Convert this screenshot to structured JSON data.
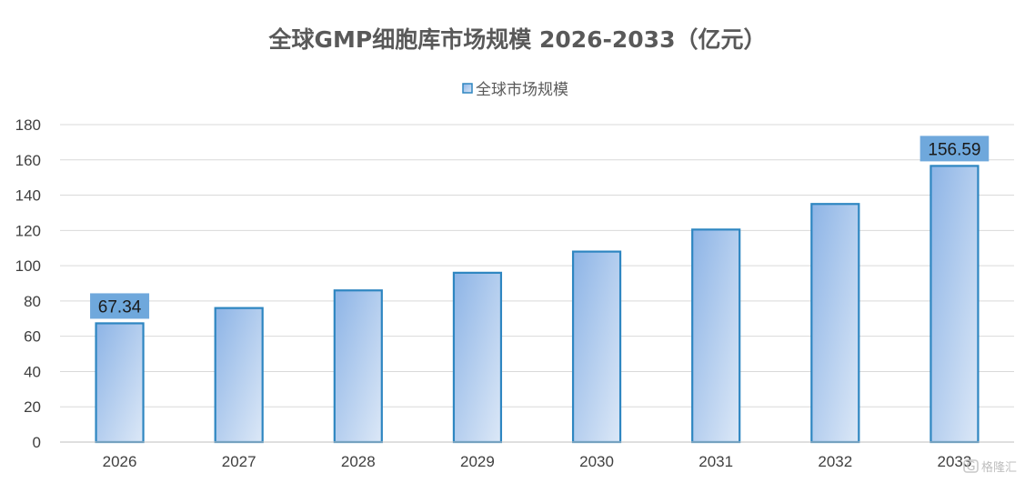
{
  "chart_data": {
    "type": "bar",
    "title": "全球GMP细胞库市场规模 2026-2033（亿元）",
    "categories": [
      "2026",
      "2027",
      "2028",
      "2029",
      "2030",
      "2031",
      "2032",
      "2033"
    ],
    "series": [
      {
        "name": "全球市场规模",
        "values": [
          67.34,
          76,
          86,
          96,
          108,
          120.5,
          135,
          156.59
        ]
      }
    ],
    "data_labels": [
      {
        "index": 0,
        "text": "67.34"
      },
      {
        "index": 7,
        "text": "156.59"
      }
    ],
    "yticks": [
      0,
      20,
      40,
      60,
      80,
      100,
      120,
      140,
      160,
      180
    ],
    "ylim": [
      0,
      180
    ],
    "xlabel": "",
    "ylabel": "",
    "grid": true,
    "legend_position": "top-center",
    "colors": {
      "bar_fill_start": "#8DB4E6",
      "bar_fill_end": "#DCE8F7",
      "bar_border": "#2E86C1",
      "label_box": "#6FA8DC",
      "grid": "#D9D9D9",
      "axis": "#BFBFBF"
    }
  },
  "watermark": {
    "text": "格隆汇",
    "icon": "gelonghui-logo-icon"
  }
}
